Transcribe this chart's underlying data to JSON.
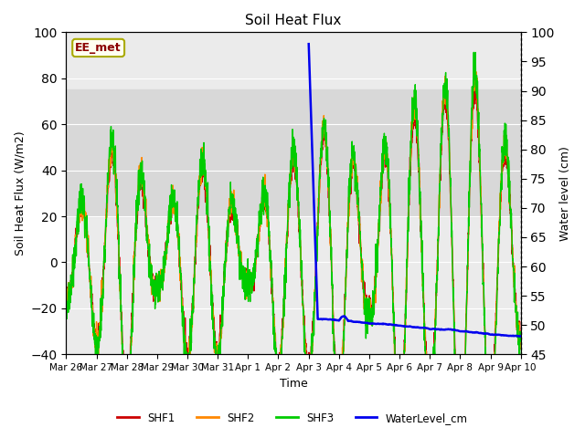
{
  "title": "Soil Heat Flux",
  "ylabel_left": "Soil Heat Flux (W/m2)",
  "ylabel_right": "Water level (cm)",
  "xlabel": "Time",
  "ylim_left": [
    -40,
    100
  ],
  "ylim_right": [
    45,
    100
  ],
  "background_color": "#ffffff",
  "plot_bg_color": "#ebebeb",
  "shaded_band_low": 20,
  "shaded_band_high": 75,
  "shaded_band_color": "#d8d8d8",
  "ee_met_label": "EE_met",
  "ee_met_text_color": "#8b0000",
  "ee_met_bg_color": "#fffff0",
  "ee_met_border_color": "#aaaa00",
  "xtick_labels": [
    "Mar 26",
    "Mar 27",
    "Mar 28",
    "Mar 29",
    "Mar 30",
    "Mar 31",
    "Apr 1",
    "Apr 2",
    "Apr 3",
    "Apr 4",
    "Apr 5",
    "Apr 6",
    "Apr 7",
    "Apr 8",
    "Apr 9",
    "Apr 10"
  ],
  "shf1_color": "#cc0000",
  "shf2_color": "#ff8800",
  "shf3_color": "#00cc00",
  "water_color": "#0000ee",
  "shf_linewidth": 1.0,
  "water_linewidth": 1.8,
  "grid_color": "#ffffff",
  "yticks_left": [
    -40,
    -20,
    0,
    20,
    40,
    60,
    80,
    100
  ],
  "yticks_right": [
    45,
    50,
    55,
    60,
    65,
    70,
    75,
    80,
    85,
    90,
    95,
    100
  ]
}
